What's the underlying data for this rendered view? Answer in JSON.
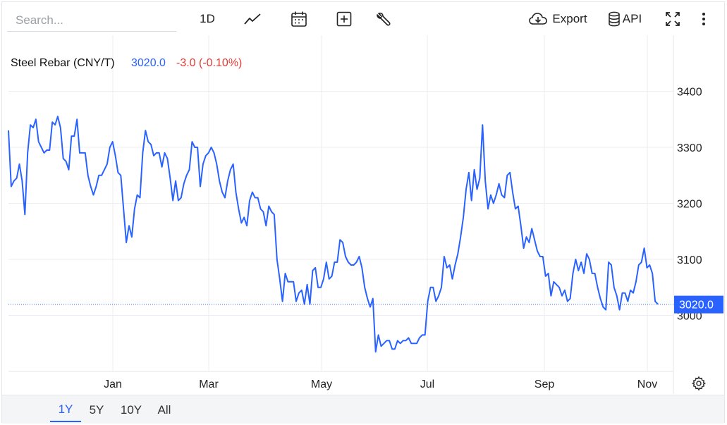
{
  "search": {
    "placeholder": "Search..."
  },
  "toolbar": {
    "interval_label": "1D",
    "export_label": "Export",
    "api_label": "API"
  },
  "legend": {
    "name": "Steel Rebar (CNY/T)",
    "price": "3020.0",
    "change": "-3.0 (-0.10%)"
  },
  "colors": {
    "line": "#2962ff",
    "negative": "#e53935",
    "grid": "#eceef1",
    "text": "#111111"
  },
  "price_tag": "3020.0",
  "ranges": [
    {
      "label": "1Y",
      "active": true
    },
    {
      "label": "5Y",
      "active": false
    },
    {
      "label": "10Y",
      "active": false
    },
    {
      "label": "All",
      "active": false
    }
  ],
  "chart_data": {
    "type": "line",
    "title": "Steel Rebar (CNY/T)",
    "x_ticks": [
      "Jan",
      "Mar",
      "May",
      "Jul",
      "Sep",
      "Nov"
    ],
    "y_ticks": [
      3000,
      3100,
      3200,
      3300,
      3400
    ],
    "ylim": [
      2900,
      3500
    ],
    "last_value": 3020,
    "grid": true,
    "series": [
      {
        "values": [
          3330,
          3230,
          3240,
          3245,
          3270,
          3240,
          3180,
          3290,
          3340,
          3335,
          3350,
          3310,
          3300,
          3290,
          3295,
          3295,
          3345,
          3340,
          3355,
          3335,
          3280,
          3275,
          3260,
          3320,
          3320,
          3350,
          3290,
          3290,
          3290,
          3250,
          3230,
          3215,
          3230,
          3250,
          3250,
          3260,
          3270,
          3300,
          3310,
          3285,
          3255,
          3250,
          3190,
          3130,
          3160,
          3140,
          3190,
          3215,
          3210,
          3290,
          3330,
          3310,
          3305,
          3285,
          3290,
          3290,
          3265,
          3290,
          3280,
          3245,
          3205,
          3240,
          3205,
          3210,
          3235,
          3250,
          3260,
          3310,
          3300,
          3300,
          3230,
          3270,
          3285,
          3290,
          3300,
          3290,
          3270,
          3240,
          3220,
          3210,
          3240,
          3260,
          3270,
          3220,
          3190,
          3165,
          3175,
          3160,
          3205,
          3220,
          3210,
          3210,
          3190,
          3185,
          3160,
          3195,
          3185,
          3180,
          3100,
          3065,
          3025,
          3075,
          3060,
          3060,
          3060,
          3025,
          3040,
          3045,
          3020,
          3055,
          3020,
          3080,
          3085,
          3050,
          3050,
          3065,
          3095,
          3065,
          3070,
          3095,
          3095,
          3135,
          3130,
          3105,
          3095,
          3090,
          3090,
          3095,
          3105,
          3085,
          3050,
          3030,
          3015,
          3030,
          2935,
          2965,
          2945,
          2950,
          2955,
          2955,
          2940,
          2940,
          2955,
          2950,
          2955,
          2955,
          2960,
          2950,
          2950,
          2950,
          2960,
          2965,
          2965,
          3025,
          3050,
          3050,
          3025,
          3035,
          3050,
          3105,
          3085,
          3090,
          3065,
          3090,
          3110,
          3140,
          3175,
          3225,
          3255,
          3205,
          3260,
          3225,
          3245,
          3340,
          3240,
          3190,
          3215,
          3200,
          3215,
          3235,
          3215,
          3210,
          3250,
          3255,
          3220,
          3190,
          3195,
          3160,
          3120,
          3140,
          3130,
          3155,
          3135,
          3115,
          3105,
          3105,
          3070,
          3075,
          3035,
          3060,
          3055,
          3050,
          3035,
          3045,
          3025,
          3030,
          3075,
          3100,
          3080,
          3095,
          3075,
          3110,
          3100,
          3075,
          3075,
          3050,
          3030,
          3015,
          3010,
          3095,
          3090,
          3050,
          3035,
          3010,
          3040,
          3040,
          3025,
          3045,
          3040,
          3060,
          3090,
          3095,
          3120,
          3085,
          3090,
          3075,
          3025,
          3020
        ]
      }
    ]
  }
}
